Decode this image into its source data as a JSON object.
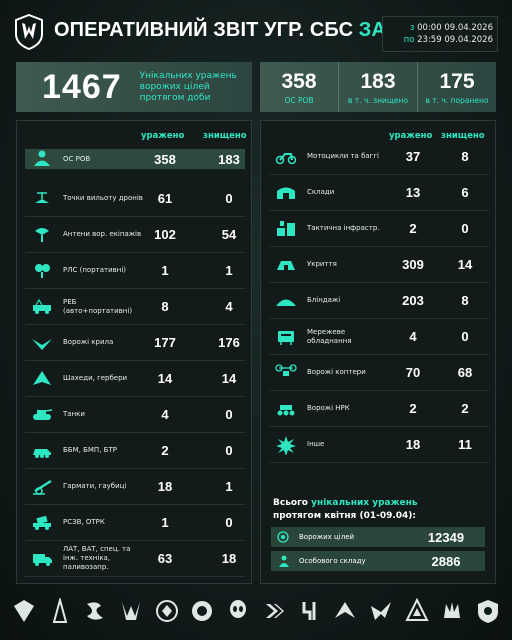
{
  "header": {
    "title_main": "Оперативний звіт УГР. СБС",
    "title_accent": "за добу",
    "date_from_label": "з",
    "date_from": "00:00 09.04.2026",
    "date_to_label": "по",
    "date_to": "23:59 09.04.2026"
  },
  "summary": {
    "unique_total": "1467",
    "unique_desc": "Унікальних уражень ворожих цілей протягом доби",
    "cells": [
      {
        "num": "358",
        "label": "ОС РОВ"
      },
      {
        "num": "183",
        "label": "в т. ч. знищено"
      },
      {
        "num": "175",
        "label": "в т. ч. поранено"
      }
    ]
  },
  "columns": {
    "hit": "уражено",
    "destroyed": "знищено"
  },
  "left_rows": [
    {
      "icon": "personnel-icon",
      "name": "ОС РОВ",
      "hit": "358",
      "destroyed": "183",
      "highlight": true
    },
    {
      "icon": "drone-launch-point-icon",
      "name": "Точки вильоту дронів",
      "hit": "61",
      "destroyed": "0"
    },
    {
      "icon": "antenna-icon",
      "name": "Антени вор. екіпажів",
      "hit": "102",
      "destroyed": "54"
    },
    {
      "icon": "radio-station-icon",
      "name": "РЛС (портативні)",
      "hit": "1",
      "destroyed": "1"
    },
    {
      "icon": "ew-vehicle-icon",
      "name": "РЕБ (авто+портативні)",
      "hit": "8",
      "destroyed": "4"
    },
    {
      "icon": "wing-drone-icon",
      "name": "Ворожі крила",
      "hit": "177",
      "destroyed": "176"
    },
    {
      "icon": "shahed-icon",
      "name": "Шахеди, гербери",
      "hit": "14",
      "destroyed": "14"
    },
    {
      "icon": "tank-icon",
      "name": "Танки",
      "hit": "4",
      "destroyed": "0"
    },
    {
      "icon": "ifv-icon",
      "name": "ББМ, БМП, БТР",
      "hit": "2",
      "destroyed": "0"
    },
    {
      "icon": "artillery-icon",
      "name": "Гармати, гаубиці",
      "hit": "18",
      "destroyed": "1"
    },
    {
      "icon": "mlrs-icon",
      "name": "РСЗВ, ОТРК",
      "hit": "1",
      "destroyed": "0"
    },
    {
      "icon": "truck-icon",
      "name": "ЛАТ, ВАТ, спец. та інж. техніка, паливозапр.",
      "hit": "63",
      "destroyed": "18"
    }
  ],
  "right_rows": [
    {
      "icon": "motorcycle-icon",
      "name": "Мотоцикли та баггі",
      "hit": "37",
      "destroyed": "8"
    },
    {
      "icon": "warehouse-icon",
      "name": "Склади",
      "hit": "13",
      "destroyed": "6"
    },
    {
      "icon": "infrastructure-icon",
      "name": "Тактична інфрастр.",
      "hit": "2",
      "destroyed": "0"
    },
    {
      "icon": "shelter-icon",
      "name": "Укриття",
      "hit": "309",
      "destroyed": "14"
    },
    {
      "icon": "dugout-icon",
      "name": "Бліндажі",
      "hit": "203",
      "destroyed": "8"
    },
    {
      "icon": "network-equipment-icon",
      "name": "Мережеве обладнання",
      "hit": "4",
      "destroyed": "0"
    },
    {
      "icon": "quadcopter-icon",
      "name": "Ворожі коптери",
      "hit": "70",
      "destroyed": "68"
    },
    {
      "icon": "ugv-icon",
      "name": "Ворожі НРК",
      "hit": "2",
      "destroyed": "2"
    },
    {
      "icon": "explosion-icon",
      "name": "Інше",
      "hit": "18",
      "destroyed": "11"
    }
  ],
  "totals": {
    "title_a": "Всього",
    "title_accent": "унікальних уражень",
    "title_b": "протягом квітня (01-09.04):",
    "rows": [
      {
        "icon": "target-icon",
        "name": "Ворожих цілей",
        "value": "12349"
      },
      {
        "icon": "personnel-icon",
        "name": "Особового складу",
        "value": "2886"
      }
    ]
  },
  "footer_emblems": [
    "emblem-1",
    "emblem-2",
    "emblem-3",
    "emblem-4",
    "emblem-5",
    "emblem-6",
    "emblem-7",
    "emblem-8",
    "emblem-9",
    "emblem-10",
    "emblem-11",
    "emblem-12",
    "emblem-13",
    "emblem-14"
  ],
  "colors": {
    "accent": "#2fe6c2",
    "highlight_row": "#2e4a3f",
    "panel": "#121b1a"
  }
}
